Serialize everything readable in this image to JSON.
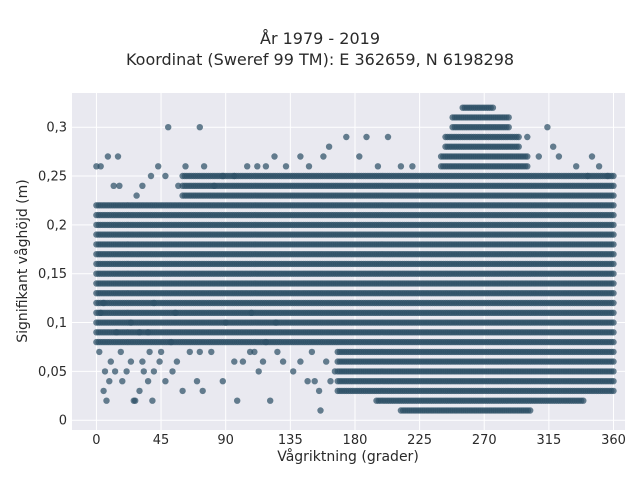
{
  "chart_data": {
    "type": "scatter",
    "title": "År 1979 - 2019",
    "subtitle": "Koordinat (Sweref 99 TM): E 362659, N 6198298",
    "xlabel": "Vågriktning (grader)",
    "ylabel": "Signifikant våghöjd (m)",
    "xlim": [
      -17,
      368
    ],
    "ylim": [
      -0.01,
      0.335
    ],
    "x_ticks": [
      0,
      45,
      90,
      135,
      180,
      225,
      270,
      315,
      360
    ],
    "x_tick_labels": [
      "0",
      "45",
      "90",
      "135",
      "180",
      "225",
      "270",
      "315",
      "360"
    ],
    "y_ticks": [
      0,
      0.05,
      0.1,
      0.15,
      0.2,
      0.25,
      0.3
    ],
    "y_tick_labels": [
      "0",
      "0,05",
      "0,1",
      "0,15",
      "0,2",
      "0,25",
      "0,3"
    ],
    "grid": true,
    "marker_color": "#2e5166",
    "background_color": "#e9e9f0",
    "value_step": 0.01,
    "dense_bands": [
      {
        "y_min": 0.08,
        "y_max": 0.22,
        "x_min": 0,
        "x_max": 360
      },
      {
        "y_min": 0.03,
        "y_max": 0.07,
        "x_min": 168,
        "x_max": 360
      },
      {
        "y_min": 0.02,
        "y_max": 0.02,
        "x_min": 195,
        "x_max": 340
      },
      {
        "y_min": 0.01,
        "y_max": 0.01,
        "x_min": 212,
        "x_max": 302
      },
      {
        "y_min": 0.23,
        "y_max": 0.25,
        "x_min": 60,
        "x_max": 360
      },
      {
        "y_min": 0.26,
        "y_max": 0.27,
        "x_min": 240,
        "x_max": 300
      },
      {
        "y_min": 0.28,
        "y_max": 0.29,
        "x_min": 243,
        "x_max": 295
      },
      {
        "y_min": 0.3,
        "y_max": 0.31,
        "x_min": 248,
        "x_max": 287
      },
      {
        "y_min": 0.32,
        "y_max": 0.32,
        "x_min": 255,
        "x_max": 277
      }
    ],
    "sparse_points": [
      [
        0,
        0.26
      ],
      [
        3,
        0.26
      ],
      [
        8,
        0.27
      ],
      [
        15,
        0.27
      ],
      [
        16,
        0.24
      ],
      [
        12,
        0.24
      ],
      [
        28,
        0.23
      ],
      [
        32,
        0.24
      ],
      [
        38,
        0.25
      ],
      [
        43,
        0.26
      ],
      [
        48,
        0.25
      ],
      [
        50,
        0.3
      ],
      [
        57,
        0.24
      ],
      [
        62,
        0.26
      ],
      [
        72,
        0.3
      ],
      [
        75,
        0.26
      ],
      [
        82,
        0.24
      ],
      [
        88,
        0.25
      ],
      [
        96,
        0.25
      ],
      [
        105,
        0.26
      ],
      [
        112,
        0.26
      ],
      [
        118,
        0.26
      ],
      [
        124,
        0.27
      ],
      [
        132,
        0.26
      ],
      [
        142,
        0.27
      ],
      [
        148,
        0.26
      ],
      [
        158,
        0.27
      ],
      [
        162,
        0.28
      ],
      [
        174,
        0.29
      ],
      [
        183,
        0.27
      ],
      [
        188,
        0.29
      ],
      [
        196,
        0.26
      ],
      [
        203,
        0.29
      ],
      [
        212,
        0.26
      ],
      [
        220,
        0.26
      ],
      [
        308,
        0.27
      ],
      [
        314,
        0.3
      ],
      [
        322,
        0.27
      ],
      [
        334,
        0.26
      ],
      [
        342,
        0.25
      ],
      [
        350,
        0.26
      ],
      [
        356,
        0.25
      ],
      [
        345,
        0.27
      ],
      [
        318,
        0.28
      ],
      [
        300,
        0.29
      ],
      [
        2,
        0.07
      ],
      [
        6,
        0.05
      ],
      [
        9,
        0.04
      ],
      [
        10,
        0.06
      ],
      [
        7,
        0.02
      ],
      [
        5,
        0.03
      ],
      [
        13,
        0.05
      ],
      [
        18,
        0.04
      ],
      [
        21,
        0.05
      ],
      [
        24,
        0.06
      ],
      [
        26,
        0.02
      ],
      [
        27,
        0.02
      ],
      [
        30,
        0.03
      ],
      [
        32,
        0.06
      ],
      [
        33,
        0.05
      ],
      [
        36,
        0.04
      ],
      [
        37,
        0.07
      ],
      [
        39,
        0.02
      ],
      [
        40,
        0.05
      ],
      [
        44,
        0.06
      ],
      [
        48,
        0.04
      ],
      [
        53,
        0.05
      ],
      [
        56,
        0.06
      ],
      [
        60,
        0.03
      ],
      [
        65,
        0.07
      ],
      [
        70,
        0.04
      ],
      [
        72,
        0.07
      ],
      [
        74,
        0.03
      ],
      [
        88,
        0.04
      ],
      [
        96,
        0.06
      ],
      [
        102,
        0.06
      ],
      [
        98,
        0.02
      ],
      [
        110,
        0.07
      ],
      [
        113,
        0.05
      ],
      [
        116,
        0.06
      ],
      [
        121,
        0.02
      ],
      [
        126,
        0.07
      ],
      [
        130,
        0.06
      ],
      [
        137,
        0.05
      ],
      [
        142,
        0.06
      ],
      [
        147,
        0.04
      ],
      [
        150,
        0.07
      ],
      [
        152,
        0.04
      ],
      [
        155,
        0.03
      ],
      [
        156,
        0.01
      ],
      [
        160,
        0.06
      ],
      [
        163,
        0.04
      ],
      [
        166,
        0.05
      ],
      [
        3,
        0.11
      ],
      [
        5,
        0.12
      ],
      [
        45,
        0.07
      ],
      [
        52,
        0.08
      ],
      [
        80,
        0.07
      ],
      [
        107,
        0.07
      ],
      [
        17,
        0.07
      ],
      [
        90,
        0.1
      ],
      [
        118,
        0.08
      ],
      [
        125,
        0.1
      ],
      [
        108,
        0.11
      ],
      [
        24,
        0.1
      ],
      [
        40,
        0.12
      ],
      [
        55,
        0.11
      ],
      [
        30,
        0.09
      ],
      [
        36,
        0.09
      ],
      [
        14,
        0.09
      ]
    ]
  }
}
